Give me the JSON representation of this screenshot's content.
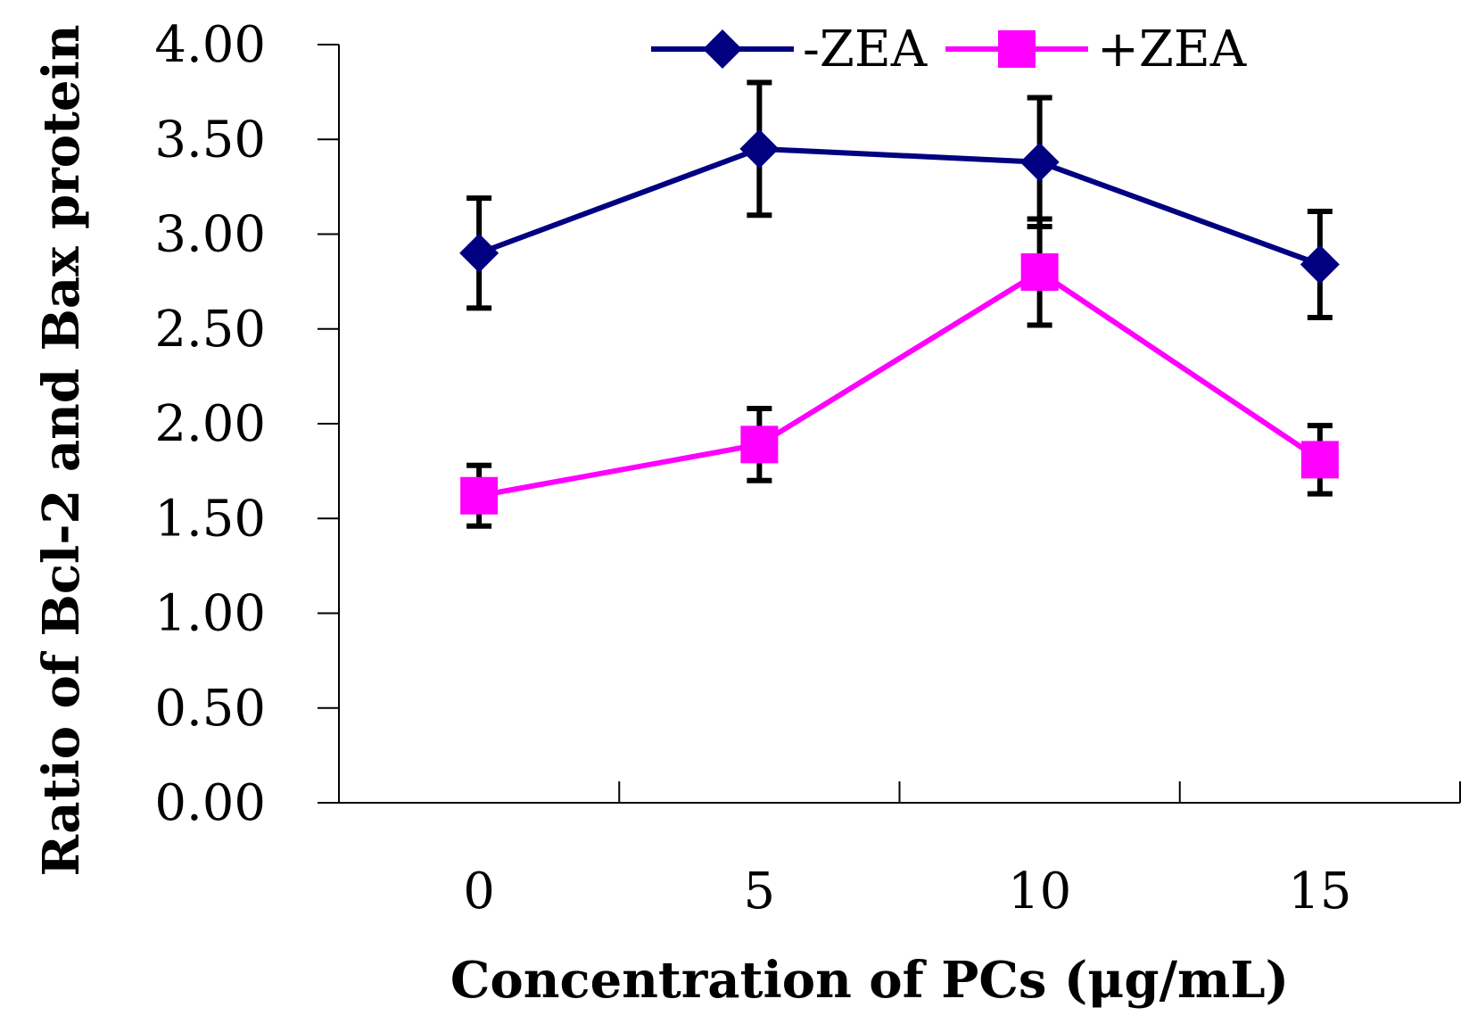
{
  "chart_data": {
    "type": "line",
    "title": "",
    "xlabel": "Concentration of PCs (μg/mL)",
    "ylabel": "Ratio of Bcl-2 and Bax protein",
    "categories": [
      "0",
      "5",
      "10",
      "15"
    ],
    "ylim": [
      0,
      4
    ],
    "ytick_step": 0.5,
    "ytick_labels": [
      "0.00",
      "0.50",
      "1.00",
      "1.50",
      "2.00",
      "2.50",
      "3.00",
      "3.50",
      "4.00"
    ],
    "grid": false,
    "legend_position": "top-right",
    "series": [
      {
        "name": "-ZEA",
        "color": "#000080",
        "marker": "diamond",
        "values": [
          2.9,
          3.45,
          3.38,
          2.84
        ],
        "errors": [
          0.29,
          0.35,
          0.34,
          0.28
        ]
      },
      {
        "name": "+ZEA",
        "color": "#ff00ff",
        "marker": "square",
        "values": [
          1.62,
          1.89,
          2.8,
          1.81
        ],
        "errors": [
          0.16,
          0.19,
          0.28,
          0.18
        ]
      }
    ],
    "error_bar_color": "#000000"
  }
}
